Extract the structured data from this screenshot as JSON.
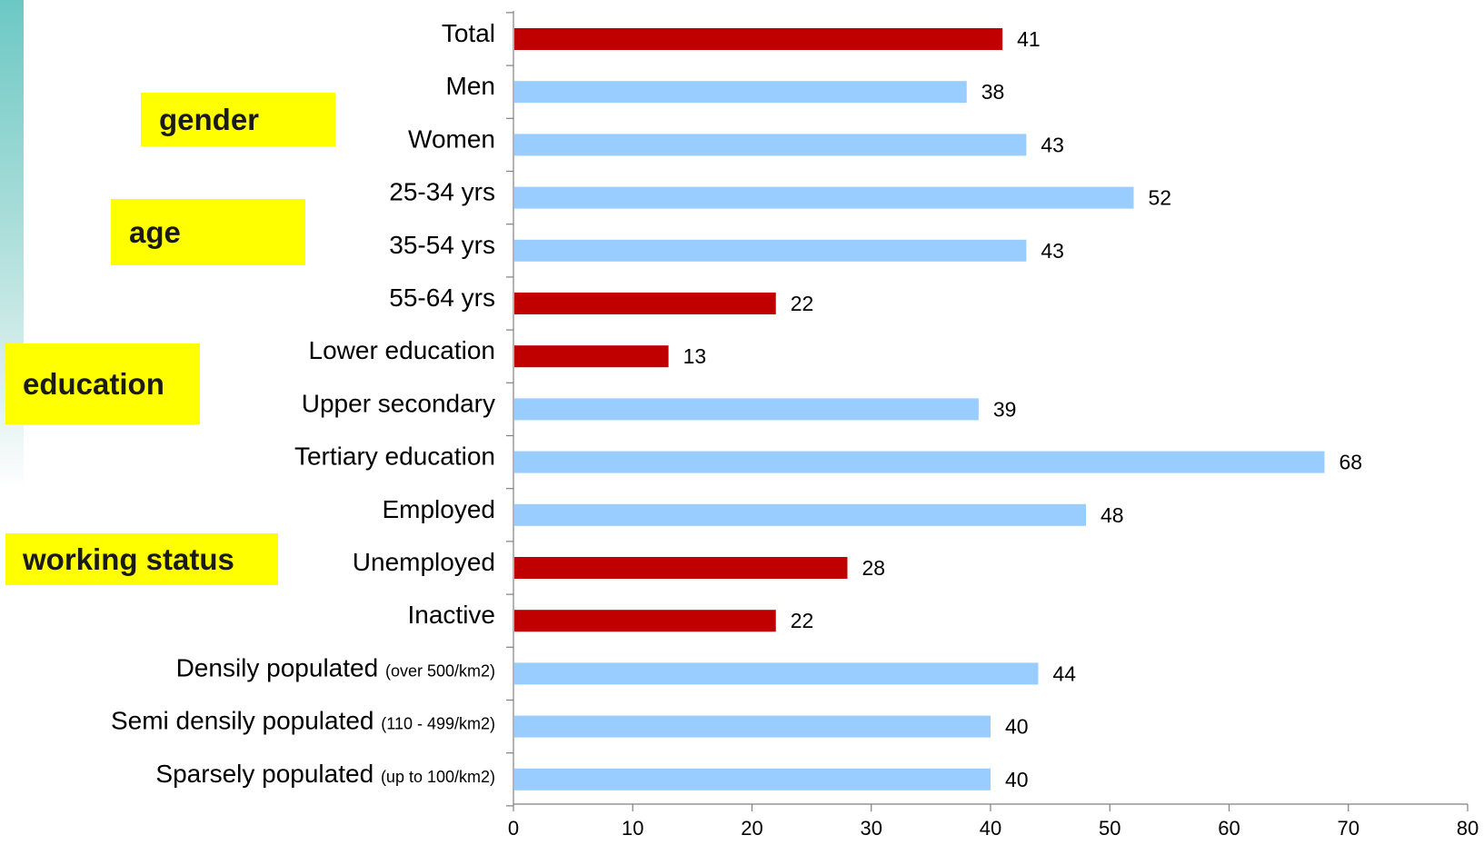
{
  "groups": {
    "gender": "gender",
    "age": "age",
    "education": "education",
    "working_status": "working status"
  },
  "colors": {
    "highlight": "#c00000",
    "normal": "#99ccff",
    "group_tag": "#ffff00",
    "accent_strip": "#6cc8c4"
  },
  "chart_data": {
    "type": "bar",
    "orientation": "horizontal",
    "title": "",
    "xlabel": "",
    "ylabel": "",
    "xlim": [
      0,
      80
    ],
    "x_ticks": [
      0,
      10,
      20,
      30,
      40,
      50,
      60,
      70,
      80
    ],
    "grid": false,
    "legend": "none",
    "bars": [
      {
        "label": "Total",
        "note": "",
        "value": 41,
        "highlight": true
      },
      {
        "label": "Men",
        "note": "",
        "value": 38,
        "highlight": false
      },
      {
        "label": "Women",
        "note": "",
        "value": 43,
        "highlight": false
      },
      {
        "label": "25-34 yrs",
        "note": "",
        "value": 52,
        "highlight": false
      },
      {
        "label": "35-54 yrs",
        "note": "",
        "value": 43,
        "highlight": false
      },
      {
        "label": "55-64 yrs",
        "note": "",
        "value": 22,
        "highlight": true
      },
      {
        "label": "Lower education",
        "note": "",
        "value": 13,
        "highlight": true
      },
      {
        "label": "Upper  secondary",
        "note": "",
        "value": 39,
        "highlight": false
      },
      {
        "label": "Tertiary education",
        "note": "",
        "value": 68,
        "highlight": false
      },
      {
        "label": "Employed",
        "note": "",
        "value": 48,
        "highlight": false
      },
      {
        "label": "Unemployed",
        "note": "",
        "value": 28,
        "highlight": true
      },
      {
        "label": "Inactive",
        "note": "",
        "value": 22,
        "highlight": true
      },
      {
        "label": "Densily populated",
        "note": "(over 500/km2)",
        "value": 44,
        "highlight": false
      },
      {
        "label": "Semi  densily populated",
        "note": "(110 - 499/km2)",
        "value": 40,
        "highlight": false
      },
      {
        "label": "Sparsely populated",
        "note": "(up to 100/km2)",
        "value": 40,
        "highlight": false
      }
    ]
  }
}
